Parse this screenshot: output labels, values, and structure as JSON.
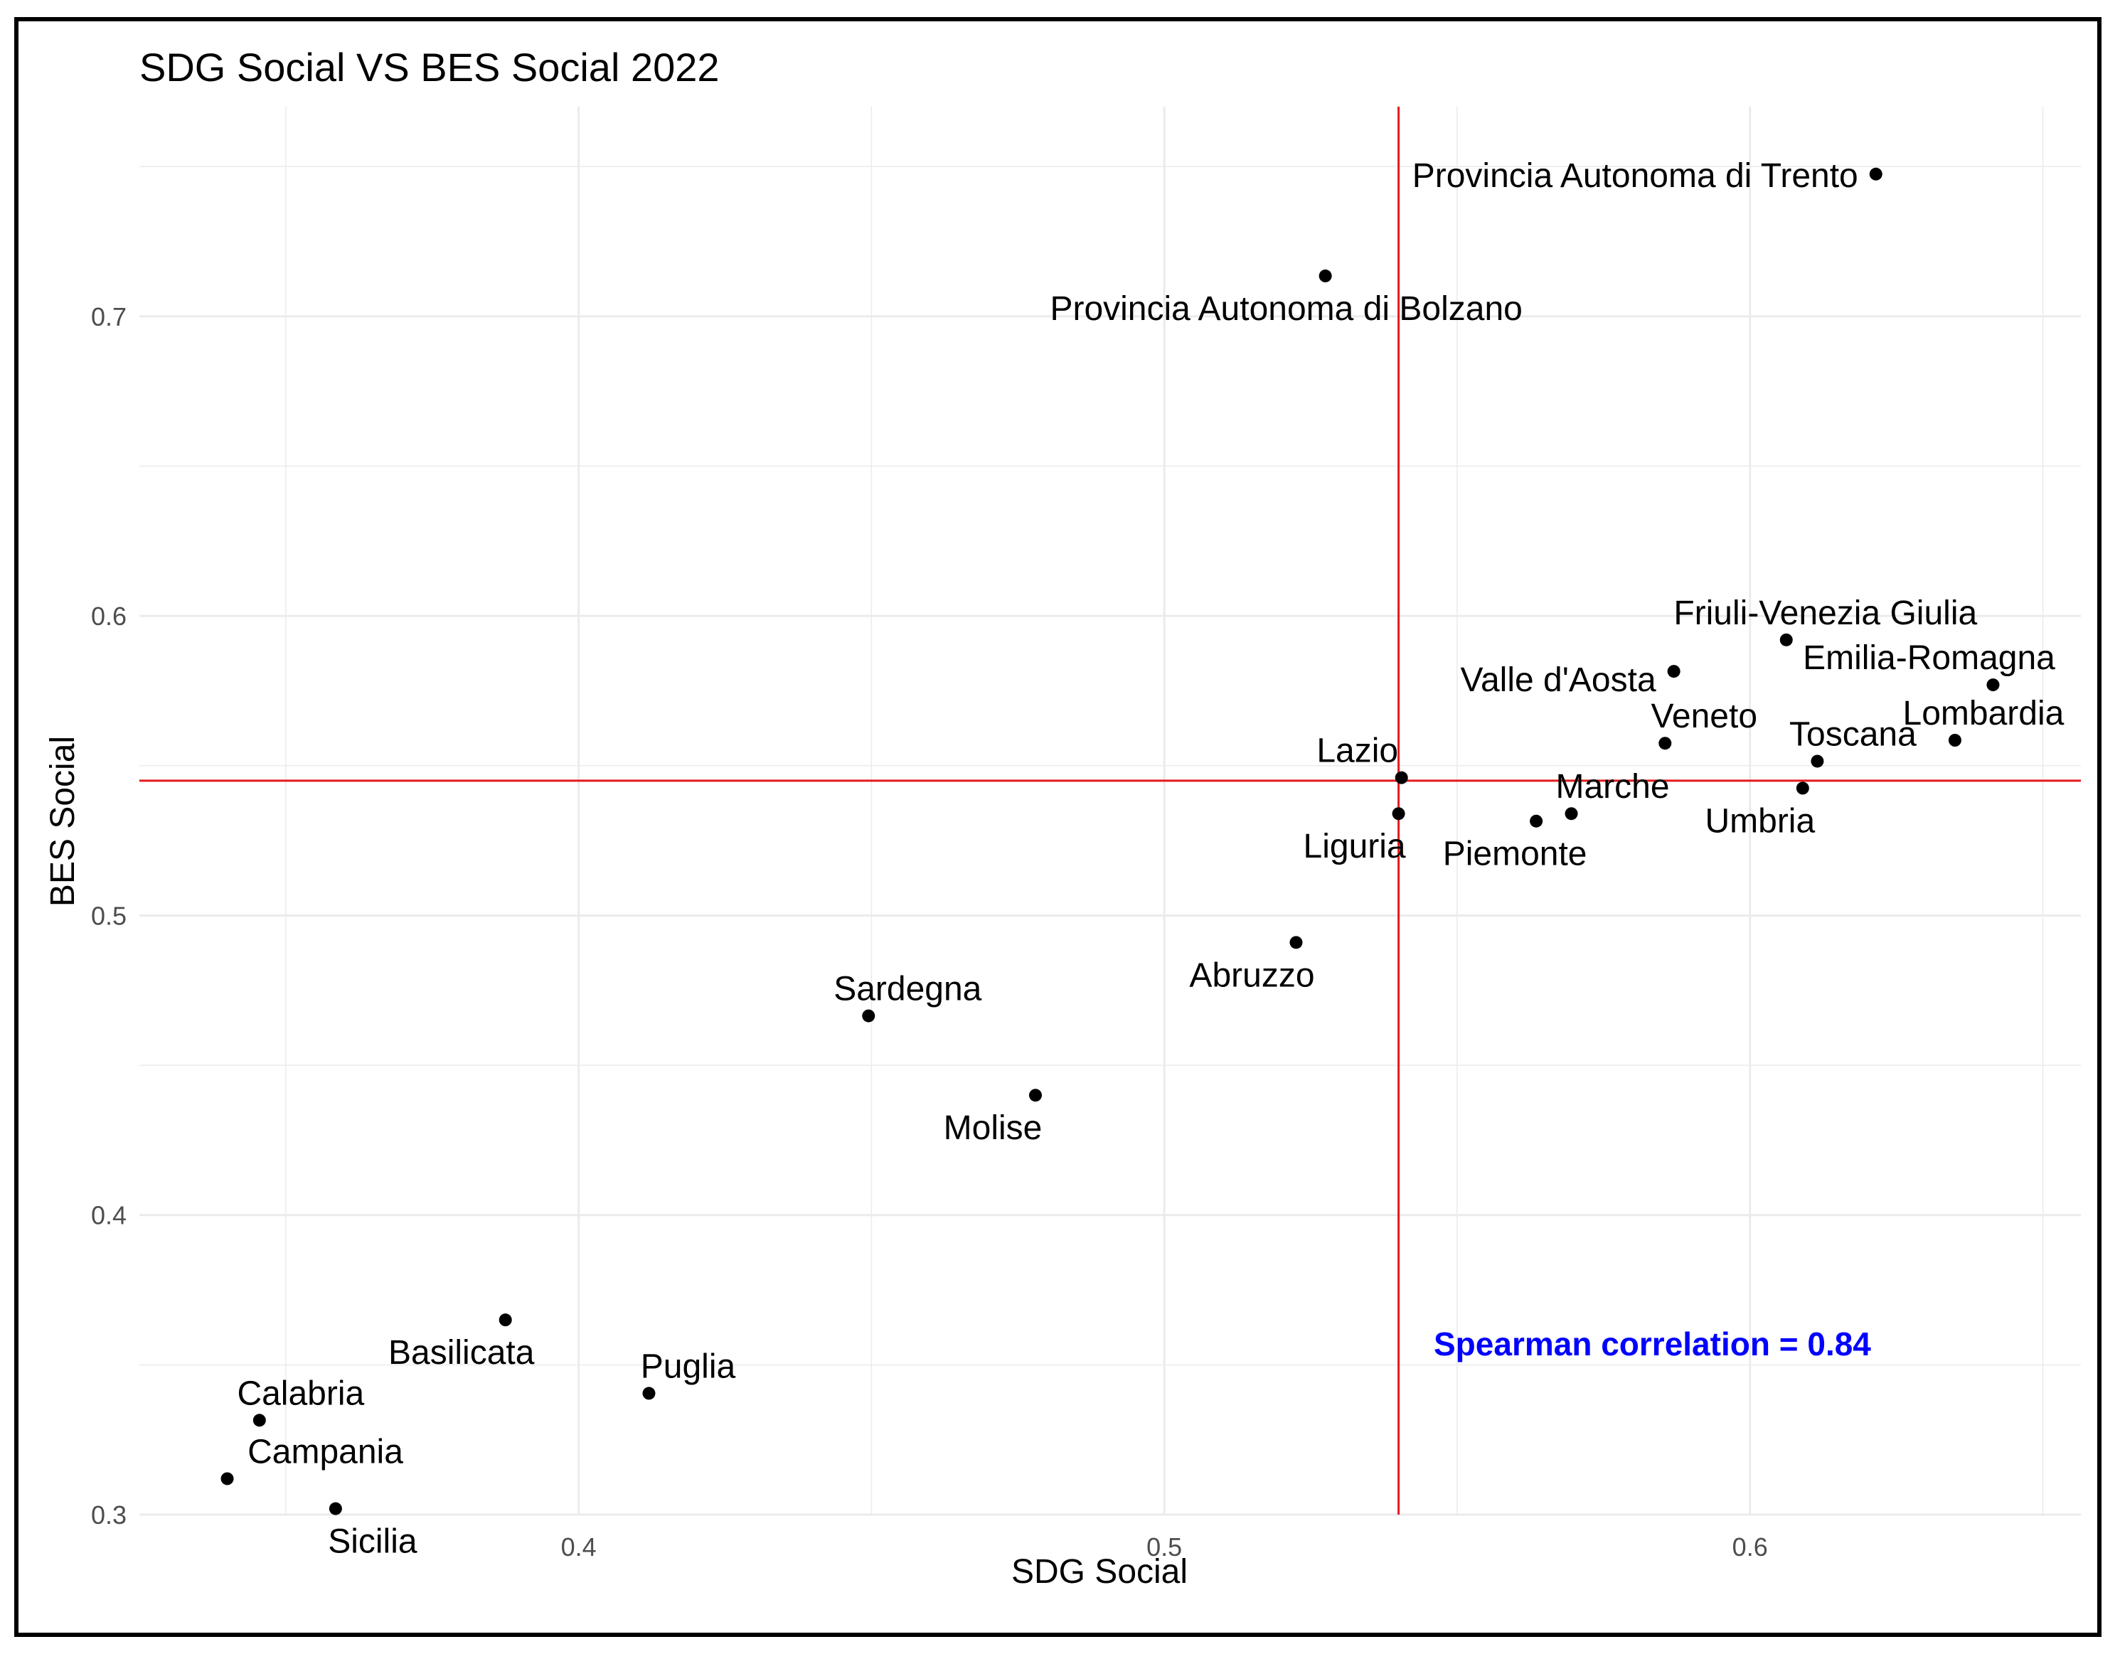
{
  "chart_data": {
    "type": "scatter",
    "title": "SDG Social VS BES Social 2022",
    "xlabel": "SDG Social",
    "ylabel": "BES Social",
    "xlim": [
      0.325,
      0.6565
    ],
    "ylim": [
      0.3,
      0.77
    ],
    "xticks": [
      "0.4",
      "0.5",
      "0.6"
    ],
    "yticks": [
      "0.3",
      "0.4",
      "0.5",
      "0.6",
      "0.7"
    ],
    "grid": true,
    "colors": {
      "points": "#000000",
      "reference_lines": "#e41a1c",
      "annotation": "#0000ff",
      "grid": "#ebebeb"
    },
    "reference_lines": {
      "x": 0.54,
      "y": 0.545
    },
    "annotation": "Spearman correlation = 0.84",
    "points": [
      {
        "label": "Provincia Autonoma di Trento",
        "x": 0.6215,
        "y": 0.7475
      },
      {
        "label": "Provincia Autonoma di Bolzano",
        "x": 0.5275,
        "y": 0.7135
      },
      {
        "label": "Friuli-Venezia Giulia",
        "x": 0.6062,
        "y": 0.592
      },
      {
        "label": "Valle d'Aosta",
        "x": 0.587,
        "y": 0.5815
      },
      {
        "label": "Emilia-Romagna",
        "x": 0.6415,
        "y": 0.577
      },
      {
        "label": "Lombardia",
        "x": 0.635,
        "y": 0.5585
      },
      {
        "label": "Veneto",
        "x": 0.5855,
        "y": 0.5575
      },
      {
        "label": "Toscana",
        "x": 0.6115,
        "y": 0.5515
      },
      {
        "label": "Lazio",
        "x": 0.5405,
        "y": 0.546
      },
      {
        "label": "Umbria",
        "x": 0.609,
        "y": 0.5425
      },
      {
        "label": "Marche",
        "x": 0.5695,
        "y": 0.534
      },
      {
        "label": "Liguria",
        "x": 0.54,
        "y": 0.534
      },
      {
        "label": "Piemonte",
        "x": 0.5635,
        "y": 0.5315
      },
      {
        "label": "Abruzzo",
        "x": 0.5225,
        "y": 0.491
      },
      {
        "label": "Sardegna",
        "x": 0.4495,
        "y": 0.4665
      },
      {
        "label": "Molise",
        "x": 0.478,
        "y": 0.44
      },
      {
        "label": "Basilicata",
        "x": 0.3875,
        "y": 0.365
      },
      {
        "label": "Puglia",
        "x": 0.412,
        "y": 0.3405
      },
      {
        "label": "Calabria",
        "x": 0.3455,
        "y": 0.3315
      },
      {
        "label": "Campania",
        "x": 0.34,
        "y": 0.312
      },
      {
        "label": "Sicilia",
        "x": 0.3585,
        "y": 0.302
      }
    ]
  }
}
